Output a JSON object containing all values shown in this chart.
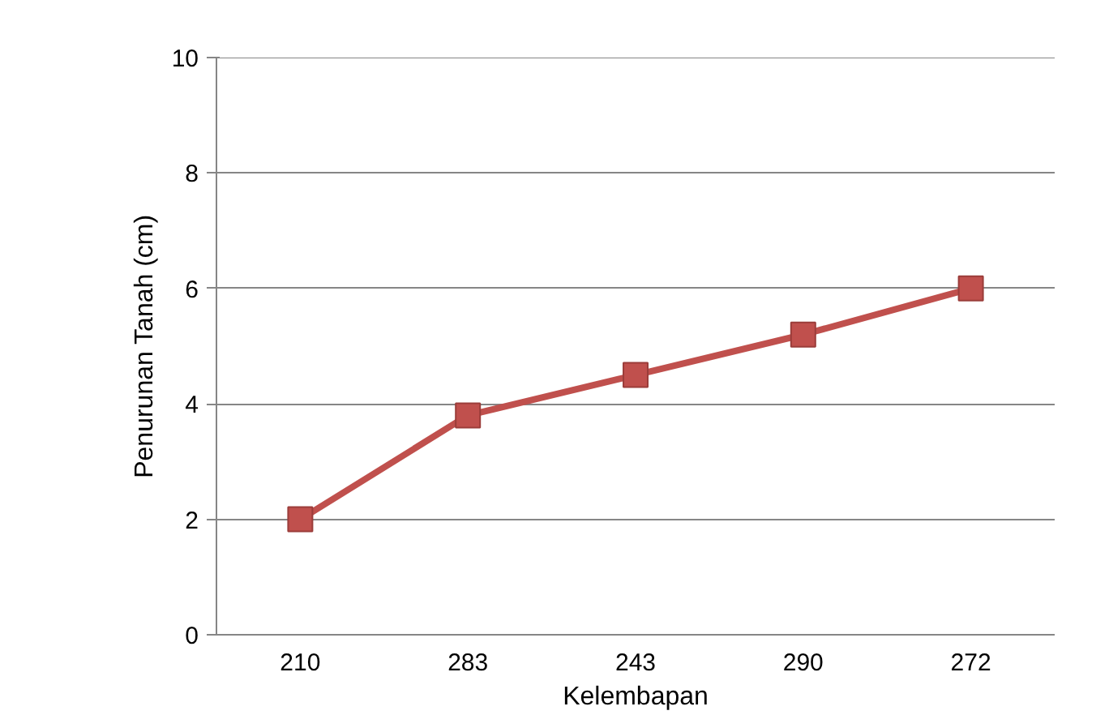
{
  "chart_data": {
    "type": "line",
    "xlabel": "Kelembapan",
    "ylabel": "Penurunan Tanah (cm)",
    "categories": [
      "210",
      "283",
      "243",
      "290",
      "272"
    ],
    "values": [
      2,
      3.8,
      4.5,
      5.2,
      6
    ],
    "color": "#c0504d",
    "marker": "square",
    "line_style": "solid",
    "ylim": [
      0,
      10
    ],
    "yticks": [
      0,
      2,
      4,
      6,
      8,
      10
    ],
    "grid": "y"
  }
}
